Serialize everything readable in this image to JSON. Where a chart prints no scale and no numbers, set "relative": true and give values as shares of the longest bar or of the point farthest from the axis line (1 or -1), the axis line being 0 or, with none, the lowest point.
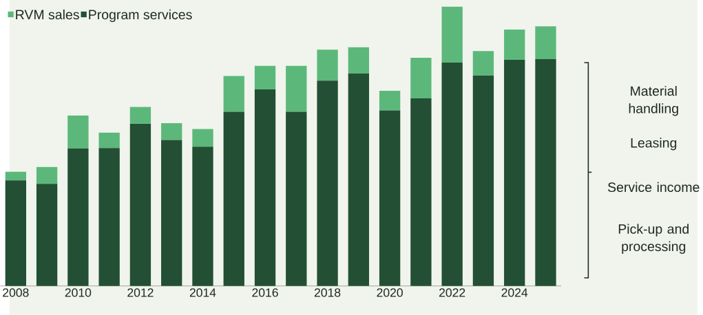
{
  "chart_data": {
    "type": "bar",
    "stacked": true,
    "relative": true,
    "legend": "top left",
    "categories": [
      "2008",
      null,
      "2010",
      null,
      "2012",
      null,
      "2014",
      null,
      "2016",
      null,
      "2018",
      null,
      "2020",
      null,
      "2022",
      null,
      "2024",
      null
    ],
    "series": [
      {
        "name": "Program services",
        "color": "#234f34",
        "values": [
          0.378,
          0.366,
          0.492,
          0.494,
          0.581,
          0.523,
          0.499,
          0.624,
          0.704,
          0.624,
          0.735,
          0.761,
          0.629,
          0.672,
          0.8,
          0.754,
          0.81,
          0.812
        ]
      },
      {
        "name": "RVM sales",
        "color": "#5cb87a",
        "values": [
          0.031,
          0.06,
          0.118,
          0.055,
          0.06,
          0.06,
          0.063,
          0.128,
          0.084,
          0.164,
          0.111,
          0.094,
          0.07,
          0.145,
          0.2,
          0.087,
          0.108,
          0.118
        ]
      }
    ],
    "annotations": [
      "Material handling",
      "Leasing",
      "Service income",
      "Pick-up and processing"
    ]
  }
}
